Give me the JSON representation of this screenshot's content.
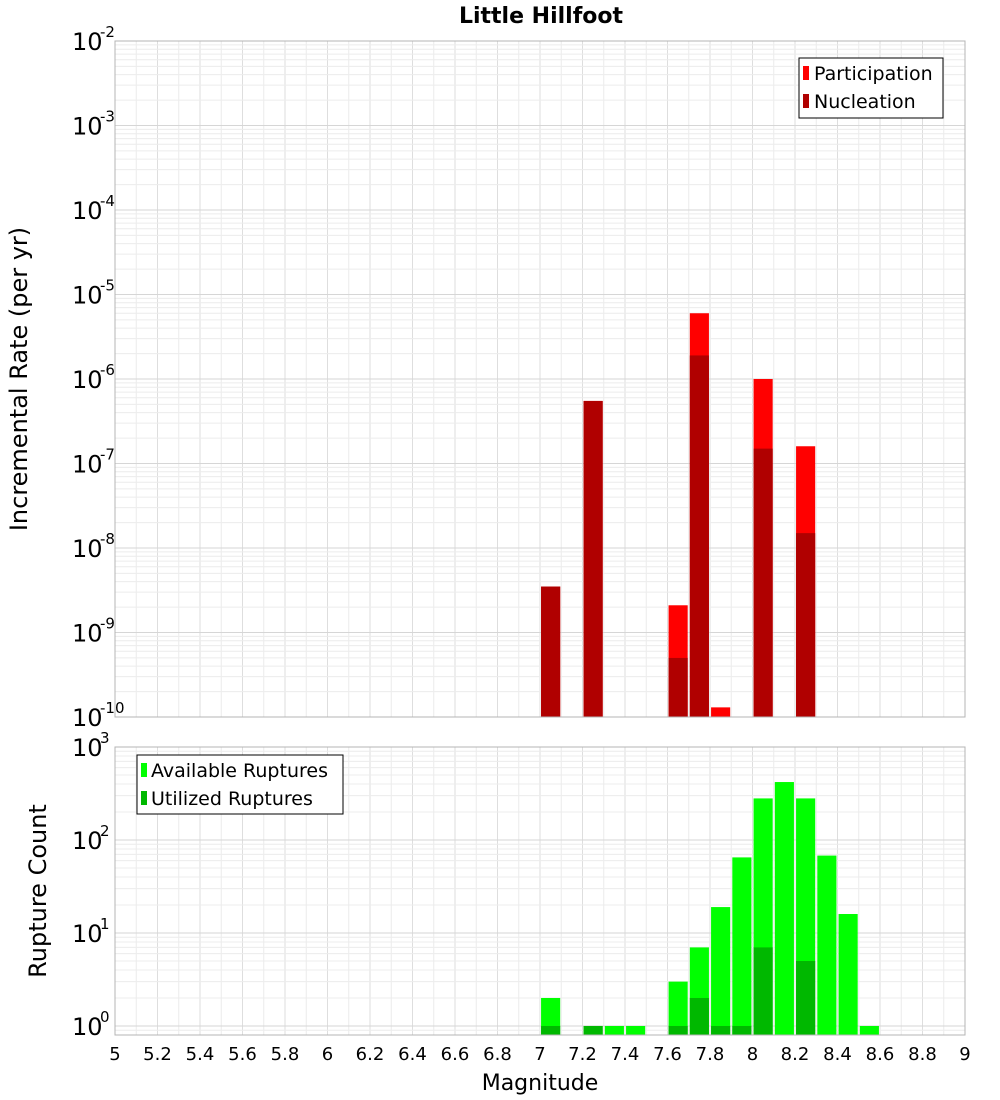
{
  "chart_data": [
    {
      "type": "bar",
      "title": "Little Hillfoot",
      "ylabel": "Incremental Rate (per yr)",
      "xlabel": "",
      "xlim": [
        5,
        9
      ],
      "ylim": [
        1e-10,
        0.01
      ],
      "y_scale": "log",
      "bar_width": 0.09,
      "grid": true,
      "legend_position": "top-right",
      "ytick_labels": [
        {
          "base": "10",
          "exp": "-10",
          "value": 1e-10
        },
        {
          "base": "10",
          "exp": "-9",
          "value": 1e-09
        },
        {
          "base": "10",
          "exp": "-8",
          "value": 1e-08
        },
        {
          "base": "10",
          "exp": "-7",
          "value": 1e-07
        },
        {
          "base": "10",
          "exp": "-6",
          "value": 1e-06
        },
        {
          "base": "10",
          "exp": "-5",
          "value": 1e-05
        },
        {
          "base": "10",
          "exp": "-4",
          "value": 0.0001
        },
        {
          "base": "10",
          "exp": "-3",
          "value": 0.001
        },
        {
          "base": "10",
          "exp": "-2",
          "value": 0.01
        }
      ],
      "series": [
        {
          "name": "Participation",
          "color": "#ff0000",
          "x": [
            7.05,
            7.25,
            7.65,
            7.75,
            7.85,
            8.05,
            8.25
          ],
          "values": [
            3.5e-09,
            5.5e-07,
            2.1e-09,
            6e-06,
            1.3e-10,
            1e-06,
            1.6e-07
          ]
        },
        {
          "name": "Nucleation",
          "color": "#b00000",
          "x": [
            7.05,
            7.25,
            7.65,
            7.75,
            8.05,
            8.25
          ],
          "values": [
            3.5e-09,
            5.5e-07,
            5e-10,
            1.9e-06,
            1.5e-07,
            1.5e-08
          ]
        }
      ]
    },
    {
      "type": "bar",
      "title": "",
      "ylabel": "Rupture Count",
      "xlabel": "Magnitude",
      "xlim": [
        5,
        9
      ],
      "ylim": [
        0.8,
        1000
      ],
      "y_scale": "log",
      "bar_width": 0.09,
      "grid": true,
      "legend_position": "top-left",
      "ytick_labels": [
        {
          "base": "10",
          "exp": "0",
          "value": 1
        },
        {
          "base": "10",
          "exp": "1",
          "value": 10
        },
        {
          "base": "10",
          "exp": "2",
          "value": 100
        },
        {
          "base": "10",
          "exp": "3",
          "value": 1000
        }
      ],
      "xtick_labels": [
        "5",
        "5.2",
        "5.4",
        "5.6",
        "5.8",
        "6",
        "6.2",
        "6.4",
        "6.6",
        "6.8",
        "7",
        "7.2",
        "7.4",
        "7.6",
        "7.8",
        "8",
        "8.2",
        "8.4",
        "8.6",
        "8.8",
        "9"
      ],
      "series": [
        {
          "name": "Available Ruptures",
          "color": "#00ff00",
          "x": [
            7.05,
            7.25,
            7.35,
            7.45,
            7.65,
            7.75,
            7.85,
            7.95,
            8.05,
            8.15,
            8.25,
            8.35,
            8.45,
            8.55
          ],
          "values": [
            2,
            1,
            1,
            1,
            3,
            7,
            19,
            65,
            280,
            420,
            280,
            68,
            16,
            1
          ]
        },
        {
          "name": "Utilized Ruptures",
          "color": "#00b800",
          "x": [
            7.05,
            7.25,
            7.65,
            7.75,
            7.85,
            7.95,
            8.05,
            8.25
          ],
          "values": [
            1,
            1,
            1,
            2,
            1,
            1,
            7,
            5
          ]
        }
      ]
    }
  ]
}
